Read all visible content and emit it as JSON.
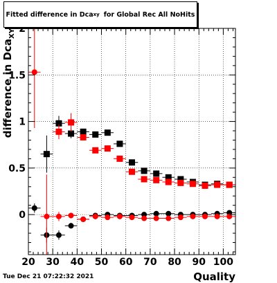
{
  "header": {
    "title_main": "Fitted difference in Dca",
    "title_sub": "xy",
    "title_rest": "for Global Rec All NoHits"
  },
  "footer": {
    "timestamp": "Tue Dec 21 07:22:32 2021"
  },
  "chart_data": {
    "type": "scatter",
    "title": "Fitted difference in Dca_xy for Global Rec All NoHits",
    "xlabel": "Quality",
    "ylabel": "difference in Dca_XY",
    "xlim": [
      20,
      105
    ],
    "ylim": [
      -0.43,
      2.0
    ],
    "xticks": [
      20,
      30,
      40,
      50,
      60,
      70,
      80,
      90,
      100
    ],
    "yticks": [
      0,
      0.5,
      1,
      1.5,
      2
    ],
    "ytick_labels": [
      "0",
      "0.5",
      "1",
      "1.5",
      "2"
    ],
    "grid": true,
    "x_error": 2.5,
    "series": [
      {
        "marker": "square",
        "color": "#000000",
        "points": [
          {
            "x": 27.5,
            "y": 0.65,
            "err": 0.2
          },
          {
            "x": 32.5,
            "y": 0.98,
            "err": 0.08
          },
          {
            "x": 37.5,
            "y": 0.87,
            "err": 0.05
          },
          {
            "x": 42.5,
            "y": 0.89,
            "err": 0.03
          },
          {
            "x": 47.5,
            "y": 0.86,
            "err": 0.03
          },
          {
            "x": 52.5,
            "y": 0.88,
            "err": 0.03
          },
          {
            "x": 57.5,
            "y": 0.76,
            "err": 0.02
          },
          {
            "x": 62.5,
            "y": 0.56,
            "err": 0.02
          },
          {
            "x": 67.5,
            "y": 0.47,
            "err": 0.02
          },
          {
            "x": 72.5,
            "y": 0.44,
            "err": 0.02
          },
          {
            "x": 77.5,
            "y": 0.4,
            "err": 0.02
          },
          {
            "x": 82.5,
            "y": 0.38,
            "err": 0.02
          },
          {
            "x": 87.5,
            "y": 0.35,
            "err": 0.02
          },
          {
            "x": 92.5,
            "y": 0.32,
            "err": 0.02
          },
          {
            "x": 97.5,
            "y": 0.33,
            "err": 0.02
          },
          {
            "x": 102.5,
            "y": 0.32,
            "err": 0.02
          }
        ]
      },
      {
        "marker": "square",
        "color": "#ff0000",
        "points": [
          {
            "x": 32.5,
            "y": 0.89,
            "err": 0.08
          },
          {
            "x": 37.5,
            "y": 0.99,
            "err": 0.1
          },
          {
            "x": 42.5,
            "y": 0.83,
            "err": 0.03
          },
          {
            "x": 47.5,
            "y": 0.69,
            "err": 0.03
          },
          {
            "x": 52.5,
            "y": 0.71,
            "err": 0.03
          },
          {
            "x": 57.5,
            "y": 0.6,
            "err": 0.02
          },
          {
            "x": 62.5,
            "y": 0.46,
            "err": 0.02
          },
          {
            "x": 67.5,
            "y": 0.38,
            "err": 0.02
          },
          {
            "x": 72.5,
            "y": 0.37,
            "err": 0.02
          },
          {
            "x": 77.5,
            "y": 0.35,
            "err": 0.02
          },
          {
            "x": 82.5,
            "y": 0.34,
            "err": 0.02
          },
          {
            "x": 87.5,
            "y": 0.33,
            "err": 0.02
          },
          {
            "x": 92.5,
            "y": 0.31,
            "err": 0.02
          },
          {
            "x": 97.5,
            "y": 0.32,
            "err": 0.02
          },
          {
            "x": 102.5,
            "y": 0.32,
            "err": 0.02
          }
        ]
      },
      {
        "marker": "circle",
        "color": "#000000",
        "points": [
          {
            "x": 22.5,
            "y": 0.07,
            "err": 0.05
          },
          {
            "x": 27.5,
            "y": -0.22,
            "err": 0.08
          },
          {
            "x": 32.5,
            "y": -0.22,
            "err": 0.05
          },
          {
            "x": 37.5,
            "y": -0.12,
            "err": 0.03
          },
          {
            "x": 42.5,
            "y": -0.05,
            "err": 0.02
          },
          {
            "x": 47.5,
            "y": -0.01,
            "err": 0.02
          },
          {
            "x": 52.5,
            "y": 0.0,
            "err": 0.02
          },
          {
            "x": 57.5,
            "y": -0.01,
            "err": 0.02
          },
          {
            "x": 62.5,
            "y": -0.01,
            "err": 0.02
          },
          {
            "x": 67.5,
            "y": 0.0,
            "err": 0.02
          },
          {
            "x": 72.5,
            "y": 0.01,
            "err": 0.02
          },
          {
            "x": 77.5,
            "y": 0.01,
            "err": 0.02
          },
          {
            "x": 82.5,
            "y": 0.0,
            "err": 0.02
          },
          {
            "x": 87.5,
            "y": 0.0,
            "err": 0.02
          },
          {
            "x": 92.5,
            "y": 0.0,
            "err": 0.02
          },
          {
            "x": 97.5,
            "y": 0.01,
            "err": 0.02
          },
          {
            "x": 102.5,
            "y": 0.02,
            "err": 0.02
          }
        ]
      },
      {
        "marker": "circle",
        "color": "#ff0000",
        "points": [
          {
            "x": 22.5,
            "y": 1.53,
            "err": 0.6
          },
          {
            "x": 27.5,
            "y": -0.02,
            "err": 0.45
          },
          {
            "x": 32.5,
            "y": -0.02,
            "err": 0.05
          },
          {
            "x": 37.5,
            "y": -0.01,
            "err": 0.03
          },
          {
            "x": 42.5,
            "y": -0.05,
            "err": 0.02
          },
          {
            "x": 47.5,
            "y": -0.02,
            "err": 0.02
          },
          {
            "x": 52.5,
            "y": -0.03,
            "err": 0.02
          },
          {
            "x": 57.5,
            "y": -0.02,
            "err": 0.02
          },
          {
            "x": 62.5,
            "y": -0.03,
            "err": 0.02
          },
          {
            "x": 67.5,
            "y": -0.04,
            "err": 0.02
          },
          {
            "x": 72.5,
            "y": -0.04,
            "err": 0.02
          },
          {
            "x": 77.5,
            "y": -0.04,
            "err": 0.02
          },
          {
            "x": 82.5,
            "y": -0.03,
            "err": 0.02
          },
          {
            "x": 87.5,
            "y": -0.02,
            "err": 0.02
          },
          {
            "x": 92.5,
            "y": -0.02,
            "err": 0.02
          },
          {
            "x": 97.5,
            "y": -0.02,
            "err": 0.02
          },
          {
            "x": 102.5,
            "y": -0.02,
            "err": 0.02
          }
        ]
      }
    ]
  }
}
